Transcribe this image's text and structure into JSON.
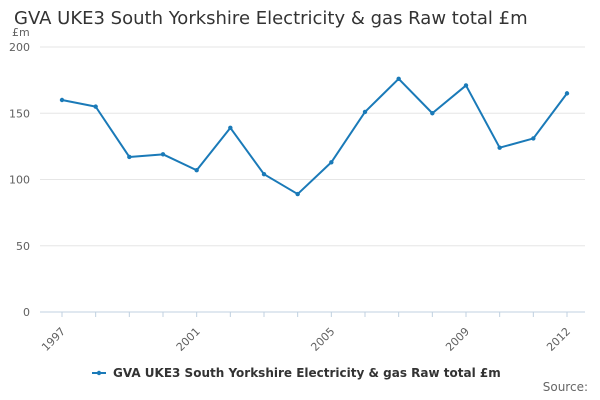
{
  "chart_data": {
    "type": "line",
    "title": "GVA UKE3 South Yorkshire Electricity & gas Raw total £m",
    "ylabel": "£m",
    "xlabel": "",
    "x": [
      1997,
      1998,
      1999,
      2000,
      2001,
      2002,
      2003,
      2004,
      2005,
      2006,
      2007,
      2008,
      2009,
      2010,
      2011,
      2012
    ],
    "x_tick_labels": [
      "1997",
      "2001",
      "2005",
      "2009",
      "2012"
    ],
    "y_tick_labels": [
      "0",
      "50",
      "100",
      "150",
      "200"
    ],
    "ylim": [
      0,
      200
    ],
    "series": [
      {
        "name": "GVA UKE3 South Yorkshire Electricity & gas Raw total £m",
        "color": "#1a7ab8",
        "values": [
          160,
          155,
          117,
          119,
          107,
          139,
          104,
          89,
          113,
          151,
          176,
          150,
          171,
          124,
          131,
          165
        ]
      }
    ],
    "grid": true,
    "legend": "bottom-center"
  },
  "footer": {
    "source_label": "Source:"
  }
}
